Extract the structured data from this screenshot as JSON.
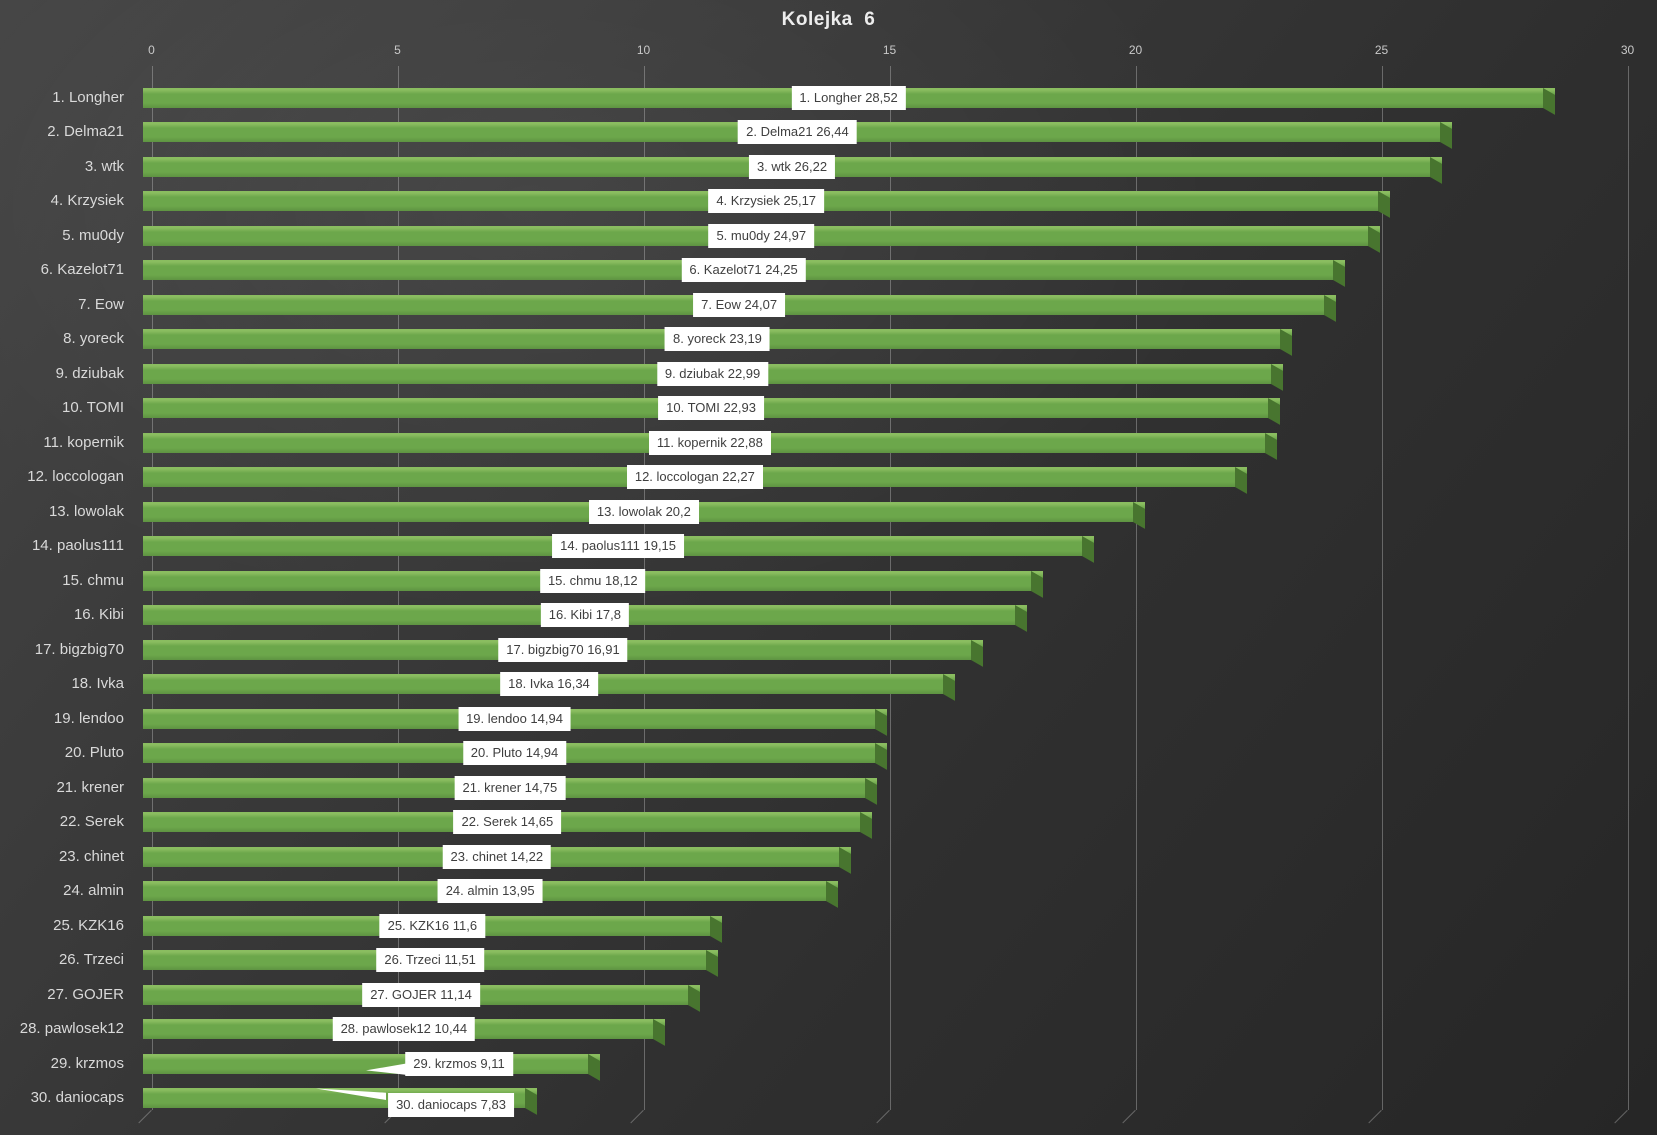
{
  "title": "Kolejka  6",
  "x_axis": {
    "tick_labels": [
      "0",
      "5",
      "10",
      "15",
      "20",
      "25",
      "30"
    ]
  },
  "chart_data": {
    "type": "bar",
    "orientation": "horizontal",
    "title": "Kolejka  6",
    "xlabel": "",
    "ylabel": "",
    "xlim": [
      0,
      30
    ],
    "x_ticks": [
      0,
      5,
      10,
      15,
      20,
      25,
      30
    ],
    "grid": true,
    "legend": false,
    "categories": [
      "1. Longher",
      "2. Delma21",
      "3. wtk",
      "4. Krzysiek",
      "5. mu0dy",
      "6. Kazelot71",
      "7. Eow",
      "8. yoreck",
      "9. dziubak",
      "10. TOMI",
      "11. kopernik",
      "12. loccologan",
      "13. lowolak",
      "14. paolus111",
      "15. chmu",
      "16. Kibi",
      "17. bigzbig70",
      "18. Ivka",
      "19. lendoo",
      "20. Pluto",
      "21. krener",
      "22. Serek",
      "23. chinet",
      "24. almin",
      "25. KZK16",
      "26. Trzeci",
      "27. GOJER",
      "28. pawlosek12",
      "29. krzmos",
      "30. daniocaps"
    ],
    "values": [
      28.52,
      26.44,
      26.22,
      25.17,
      24.97,
      24.25,
      24.07,
      23.19,
      22.99,
      22.93,
      22.88,
      22.27,
      20.2,
      19.15,
      18.12,
      17.8,
      16.91,
      16.34,
      14.94,
      14.94,
      14.75,
      14.65,
      14.22,
      13.95,
      11.6,
      11.51,
      11.14,
      10.44,
      9.11,
      7.83
    ],
    "data_labels": [
      "1. Longher 28,52",
      "2. Delma21 26,44",
      "3. wtk 26,22",
      "4. Krzysiek 25,17",
      "5. mu0dy 24,97",
      "6. Kazelot71 24,25",
      "7. Eow 24,07",
      "8. yoreck 23,19",
      "9. dziubak 22,99",
      "10. TOMI 22,93",
      "11. kopernik 22,88",
      "12. loccologan 22,27",
      "13. lowolak 20,2",
      "14. paolus111 19,15",
      "15. chmu 18,12",
      "16. Kibi 17,8",
      "17. bigzbig70 16,91",
      "18. Ivka 16,34",
      "19. lendoo 14,94",
      "20. Pluto 14,94",
      "21. krener 14,75",
      "22. Serek 14,65",
      "23. chinet 14,22",
      "24. almin 13,95",
      "25. KZK16 11,6",
      "26. Trzeci 11,51",
      "27. GOJER 11,14",
      "28. pawlosek12 10,44",
      "29. krzmos 9,11",
      "30. daniocaps 7,83"
    ]
  },
  "colors": {
    "bar_fill": "#6ca74b",
    "bar_fill_dark": "#5e9342",
    "bar_highlight": "#8abd60",
    "bar_side": "#48752f",
    "gridline": "#9a9a9a",
    "title_text": "#ededed",
    "axis_text": "#c9c9c9",
    "category_text": "#d9d9d9",
    "label_bg": "#ffffff",
    "label_text": "#3f3f3f"
  }
}
